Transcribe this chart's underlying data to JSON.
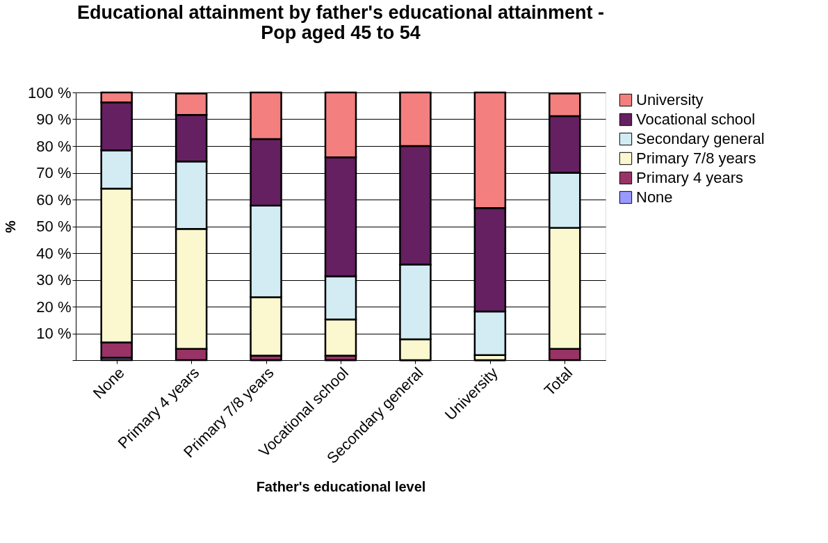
{
  "chart_data": {
    "type": "bar",
    "stacked": true,
    "title": "Educational attainment by father's educational attainment - Pop aged 45 to 54",
    "xlabel": "Father's educational level",
    "ylabel": "%",
    "categories": [
      "None",
      "Primary 4 years",
      "Primary 7/8 years",
      "Vocational school",
      "Secondary general",
      "University",
      "Total"
    ],
    "series": [
      {
        "name": "None",
        "color": "#9999ff",
        "values": [
          0.9,
          null,
          0,
          0,
          0,
          0,
          null
        ]
      },
      {
        "name": "Primary 4 years",
        "color": "#993366",
        "values": [
          5.7,
          4.2,
          1.7,
          1.7,
          0,
          0,
          4.2
        ]
      },
      {
        "name": "Primary 7/8 years",
        "color": "#fbf8cf",
        "values": [
          57.5,
          44.8,
          21.8,
          13.5,
          7.8,
          1.9,
          45.2
        ]
      },
      {
        "name": "Secondary general",
        "color": "#d3ecf3",
        "values": [
          14.3,
          25.2,
          34.2,
          16.1,
          27.9,
          16.3,
          20.6
        ]
      },
      {
        "name": "Vocational school",
        "color": "#642061",
        "values": [
          17.9,
          17.4,
          24.9,
          44.5,
          44.3,
          38.6,
          21.2
        ]
      },
      {
        "name": "University",
        "color": "#f47f7f",
        "values": [
          3.7,
          8.0,
          17.4,
          24.2,
          20.0,
          43.2,
          8.4
        ]
      }
    ],
    "ylim": [
      0,
      100
    ],
    "yticks": [
      {
        "value": 0,
        "label": null
      },
      {
        "value": 10,
        "label": "10 %"
      },
      {
        "value": 20,
        "label": "20 %"
      },
      {
        "value": 30,
        "label": "30 %"
      },
      {
        "value": 40,
        "label": "40 %"
      },
      {
        "value": 50,
        "label": "50 %"
      },
      {
        "value": 60,
        "label": "60 %"
      },
      {
        "value": 70,
        "label": "70 %"
      },
      {
        "value": 80,
        "label": "80 %"
      },
      {
        "value": 90,
        "label": "90 %"
      },
      {
        "value": 100,
        "label": "100 %"
      }
    ],
    "grid": "y",
    "legend": "right"
  }
}
